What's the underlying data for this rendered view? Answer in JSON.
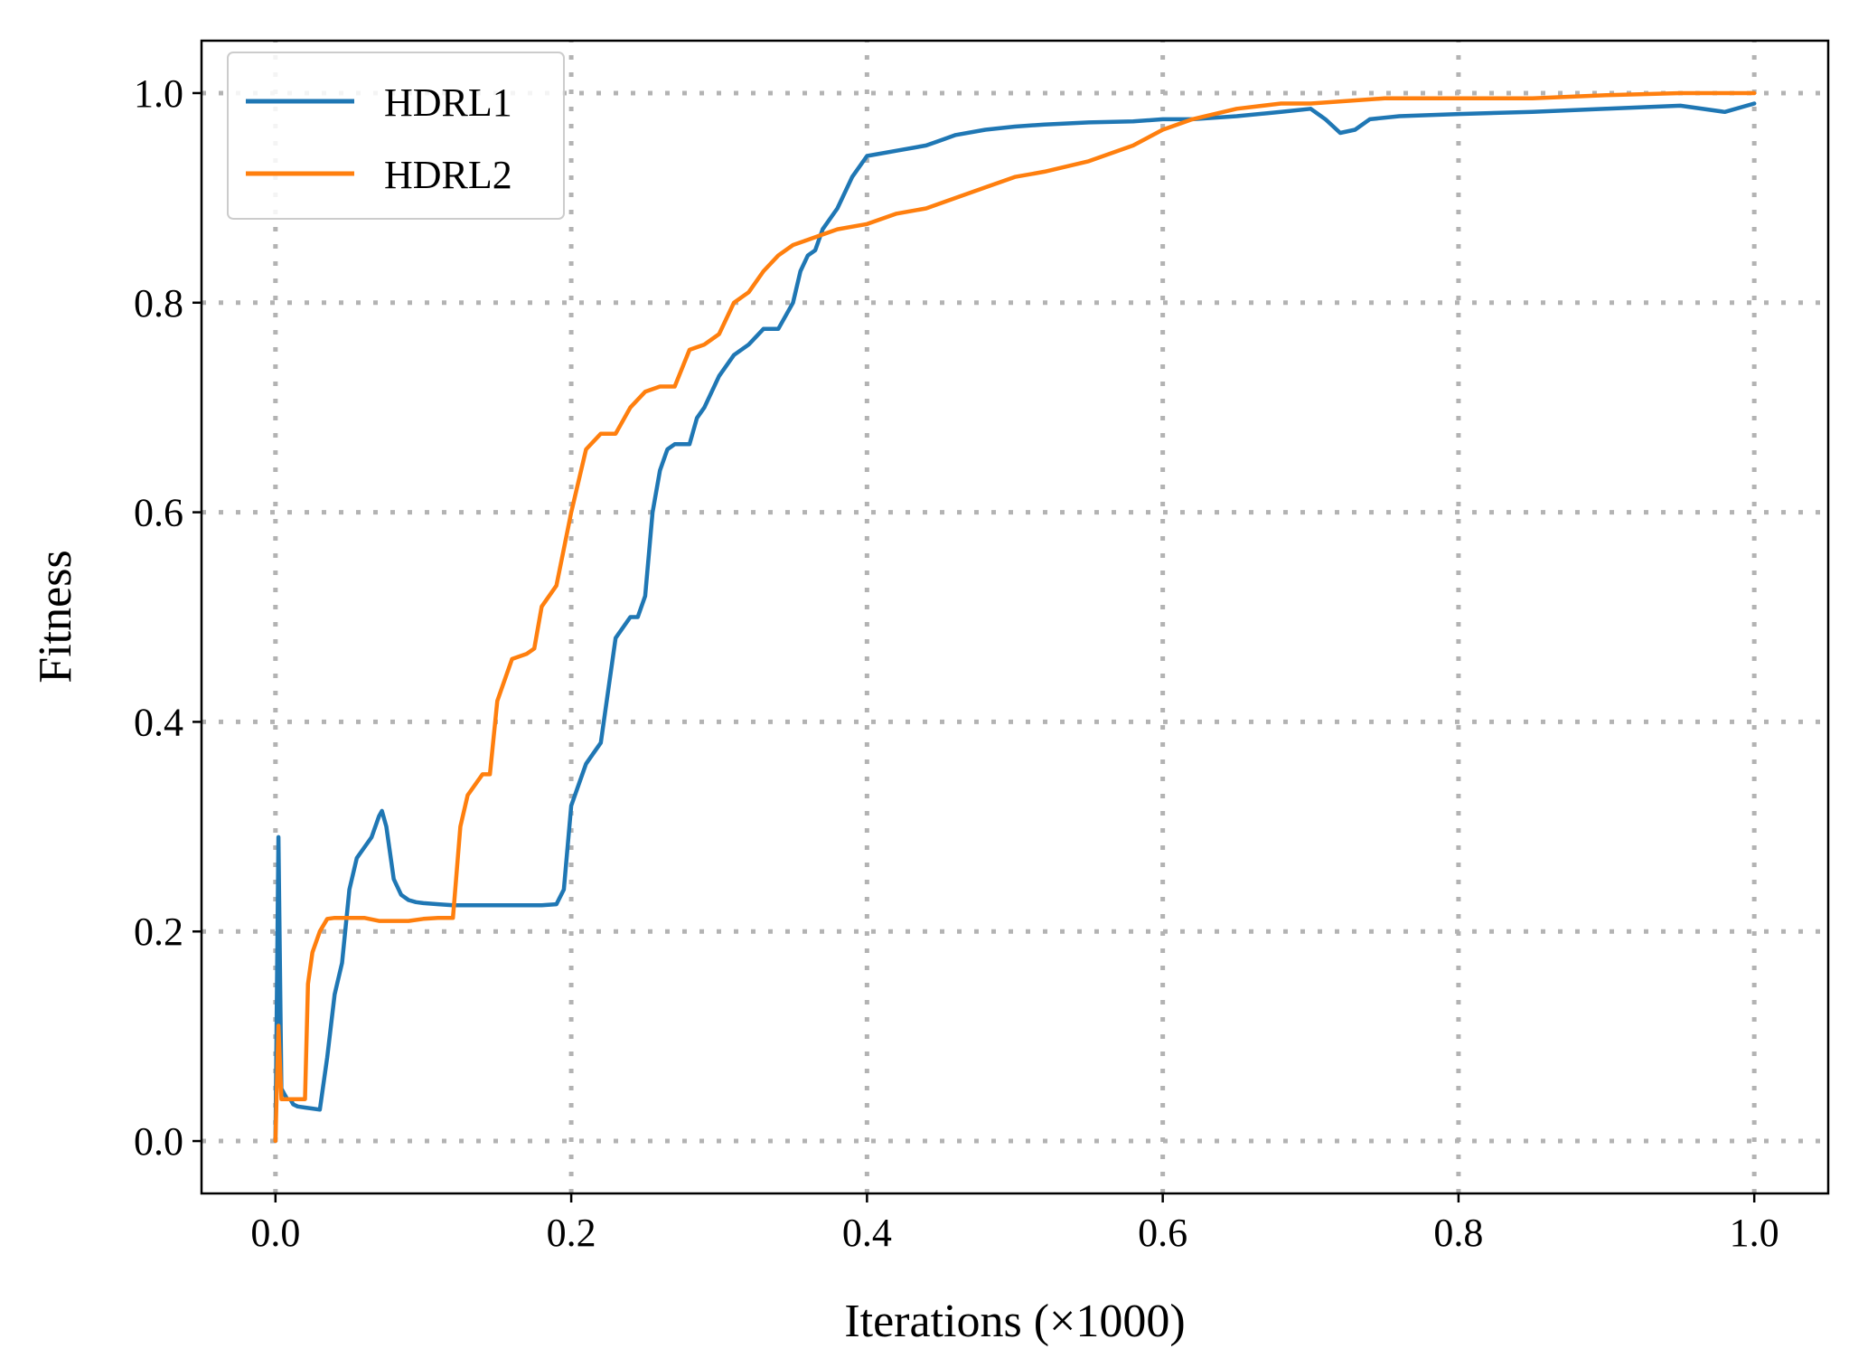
{
  "chart_data": {
    "type": "line",
    "title": "",
    "xlabel": "Iterations (×1000)",
    "ylabel": "Fitness",
    "xlim": [
      -0.05,
      1.05
    ],
    "ylim": [
      -0.05,
      1.05
    ],
    "xticks": [
      0.0,
      0.2,
      0.4,
      0.6,
      0.8,
      1.0
    ],
    "yticks": [
      0.0,
      0.2,
      0.4,
      0.6,
      0.8,
      1.0
    ],
    "xtick_labels": [
      "0.0",
      "0.2",
      "0.4",
      "0.6",
      "0.8",
      "1.0"
    ],
    "ytick_labels": [
      "0.0",
      "0.2",
      "0.4",
      "0.6",
      "0.8",
      "1.0"
    ],
    "grid": true,
    "legend_position": "top-left",
    "series": [
      {
        "name": "HDRL1",
        "color": "#1f77b4",
        "x": [
          0.0,
          0.002,
          0.004,
          0.006,
          0.008,
          0.01,
          0.012,
          0.015,
          0.02,
          0.025,
          0.03,
          0.035,
          0.04,
          0.045,
          0.05,
          0.055,
          0.06,
          0.065,
          0.07,
          0.072,
          0.075,
          0.08,
          0.085,
          0.09,
          0.095,
          0.1,
          0.11,
          0.12,
          0.13,
          0.14,
          0.15,
          0.16,
          0.17,
          0.18,
          0.19,
          0.195,
          0.2,
          0.21,
          0.215,
          0.22,
          0.23,
          0.24,
          0.245,
          0.25,
          0.255,
          0.26,
          0.265,
          0.27,
          0.28,
          0.285,
          0.29,
          0.3,
          0.31,
          0.32,
          0.33,
          0.34,
          0.35,
          0.355,
          0.36,
          0.365,
          0.37,
          0.38,
          0.39,
          0.4,
          0.42,
          0.44,
          0.45,
          0.46,
          0.48,
          0.5,
          0.52,
          0.55,
          0.58,
          0.6,
          0.62,
          0.65,
          0.68,
          0.7,
          0.71,
          0.72,
          0.73,
          0.74,
          0.76,
          0.8,
          0.85,
          0.9,
          0.95,
          0.98,
          1.0
        ],
        "y": [
          0.0,
          0.29,
          0.05,
          0.045,
          0.04,
          0.04,
          0.035,
          0.033,
          0.032,
          0.031,
          0.03,
          0.08,
          0.14,
          0.17,
          0.24,
          0.27,
          0.28,
          0.29,
          0.31,
          0.315,
          0.3,
          0.25,
          0.235,
          0.23,
          0.228,
          0.227,
          0.226,
          0.225,
          0.225,
          0.225,
          0.225,
          0.225,
          0.225,
          0.225,
          0.226,
          0.24,
          0.32,
          0.36,
          0.37,
          0.38,
          0.48,
          0.5,
          0.5,
          0.52,
          0.6,
          0.64,
          0.66,
          0.665,
          0.665,
          0.69,
          0.7,
          0.73,
          0.75,
          0.76,
          0.775,
          0.775,
          0.8,
          0.83,
          0.845,
          0.85,
          0.87,
          0.89,
          0.92,
          0.94,
          0.945,
          0.95,
          0.955,
          0.96,
          0.965,
          0.968,
          0.97,
          0.972,
          0.973,
          0.975,
          0.975,
          0.978,
          0.982,
          0.985,
          0.975,
          0.962,
          0.965,
          0.975,
          0.978,
          0.98,
          0.982,
          0.985,
          0.988,
          0.982,
          0.99
        ]
      },
      {
        "name": "HDRL2",
        "color": "#ff7f0e",
        "x": [
          0.0,
          0.002,
          0.004,
          0.006,
          0.008,
          0.012,
          0.015,
          0.02,
          0.022,
          0.025,
          0.03,
          0.035,
          0.04,
          0.05,
          0.06,
          0.07,
          0.08,
          0.09,
          0.1,
          0.11,
          0.115,
          0.12,
          0.125,
          0.13,
          0.14,
          0.145,
          0.15,
          0.16,
          0.17,
          0.175,
          0.18,
          0.19,
          0.2,
          0.21,
          0.22,
          0.23,
          0.24,
          0.25,
          0.26,
          0.27,
          0.28,
          0.29,
          0.3,
          0.31,
          0.32,
          0.33,
          0.34,
          0.35,
          0.36,
          0.37,
          0.38,
          0.4,
          0.42,
          0.44,
          0.46,
          0.48,
          0.5,
          0.52,
          0.55,
          0.58,
          0.6,
          0.62,
          0.65,
          0.68,
          0.7,
          0.75,
          0.8,
          0.85,
          0.9,
          0.95,
          1.0
        ],
        "y": [
          0.0,
          0.11,
          0.04,
          0.04,
          0.04,
          0.04,
          0.04,
          0.04,
          0.15,
          0.18,
          0.2,
          0.212,
          0.213,
          0.213,
          0.213,
          0.21,
          0.21,
          0.21,
          0.212,
          0.213,
          0.213,
          0.213,
          0.3,
          0.33,
          0.35,
          0.35,
          0.42,
          0.46,
          0.465,
          0.47,
          0.51,
          0.53,
          0.6,
          0.66,
          0.675,
          0.675,
          0.7,
          0.715,
          0.72,
          0.72,
          0.755,
          0.76,
          0.77,
          0.8,
          0.81,
          0.83,
          0.845,
          0.855,
          0.86,
          0.865,
          0.87,
          0.875,
          0.885,
          0.89,
          0.9,
          0.91,
          0.92,
          0.925,
          0.935,
          0.95,
          0.965,
          0.975,
          0.985,
          0.99,
          0.99,
          0.995,
          0.995,
          0.995,
          0.998,
          1.0,
          1.0
        ]
      }
    ]
  }
}
